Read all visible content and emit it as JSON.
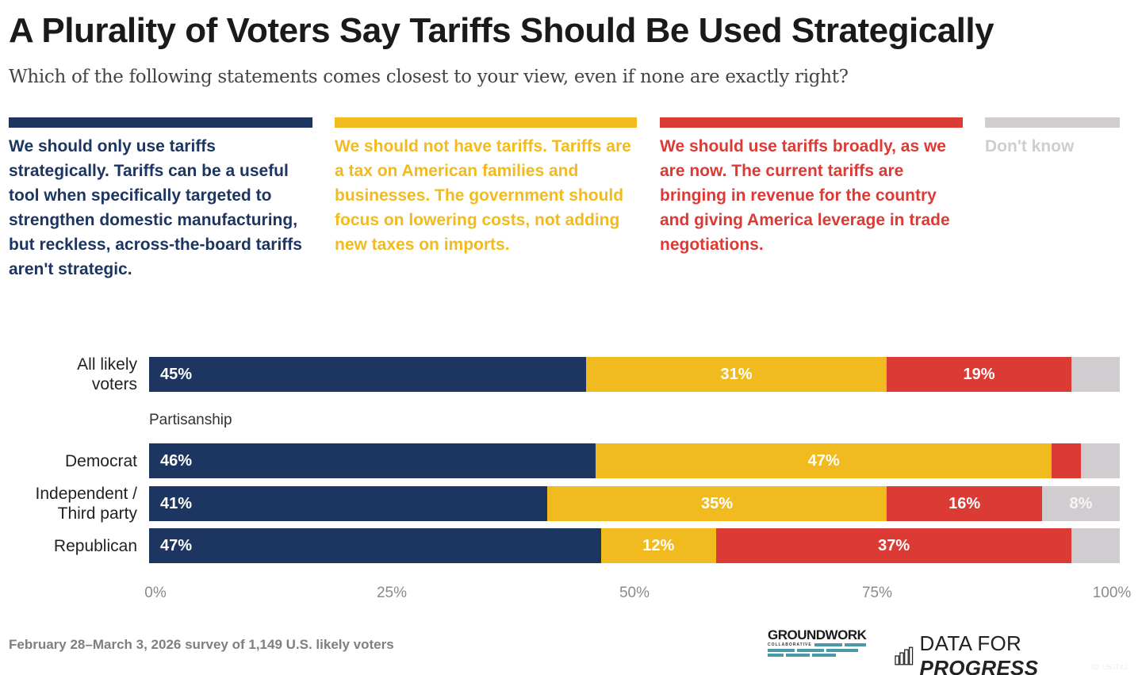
{
  "header": {
    "title": "A Plurality of Voters Say Tariffs Should Be Used Strategically",
    "subtitle": "Which of the following statements comes closest to your view, even if none are exactly right?"
  },
  "colors": {
    "strategic": "#1d3661",
    "no_tariffs": "#f1bb1f",
    "broadly": "#dc3a35",
    "dont_know": "#d0ccd0"
  },
  "chart_data": {
    "type": "bar",
    "orientation": "horizontal-stacked",
    "title": "A Plurality of Voters Say Tariffs Should Be Used Strategically",
    "subtitle": "Which of the following statements comes closest to your view, even if none are exactly right?",
    "legend": [
      {
        "key": "strategic",
        "label": "We should only use tariffs strategically. Tariffs can be a useful tool when specifically targeted to strengthen domestic manufacturing, but reckless, across-the-board tariffs aren't strategic.",
        "color": "#1d3661"
      },
      {
        "key": "no_tariffs",
        "label": "We should not have tariffs. Tariffs are a tax on American families and businesses. The government should focus on lowering costs, not adding new taxes on imports.",
        "color": "#f1bb1f"
      },
      {
        "key": "broadly",
        "label": "We should use tariffs broadly, as we are now. The current tariffs are bringing in revenue for the country and giving America leverage in trade negotiations.",
        "color": "#dc3a35"
      },
      {
        "key": "dont_know",
        "label": "Don't know",
        "color": "#d0ccd0"
      }
    ],
    "legend_position": "top",
    "categories": [
      "All likely voters",
      "Democrat",
      "Independent / Third party",
      "Republican"
    ],
    "category_labels": [
      [
        "All likely",
        "voters"
      ],
      [
        "Democrat"
      ],
      [
        "Independent /",
        "Third party"
      ],
      [
        "Republican"
      ]
    ],
    "group_label": "Partisanship",
    "series": [
      {
        "name": "strategic",
        "values": [
          45,
          46,
          41,
          47
        ],
        "labels": [
          "45%",
          "46%",
          "41%",
          "47%"
        ]
      },
      {
        "name": "no_tariffs",
        "values": [
          31,
          47,
          35,
          12
        ],
        "labels": [
          "31%",
          "47%",
          "35%",
          "12%"
        ]
      },
      {
        "name": "broadly",
        "values": [
          19,
          3,
          16,
          37
        ],
        "labels": [
          "19%",
          "",
          "16%",
          "37%"
        ]
      },
      {
        "name": "dont_know",
        "values": [
          5,
          4,
          8,
          5
        ],
        "labels": [
          "",
          "",
          "8%",
          ""
        ]
      }
    ],
    "xlim": [
      0,
      100
    ],
    "xticks": [
      "0%",
      "25%",
      "50%",
      "75%",
      "100%"
    ],
    "grid": false
  },
  "footer": {
    "source": "February 28–March 3, 2026 survey of 1,149 U.S. likely voters",
    "logo1_main": "GROUNDWORK",
    "logo1_sub": "COLLABORATIVE",
    "logo2_regular": "DATA FOR ",
    "logo2_bold": "PROGRESS",
    "chart_id": "ID: U6JTXJ"
  }
}
